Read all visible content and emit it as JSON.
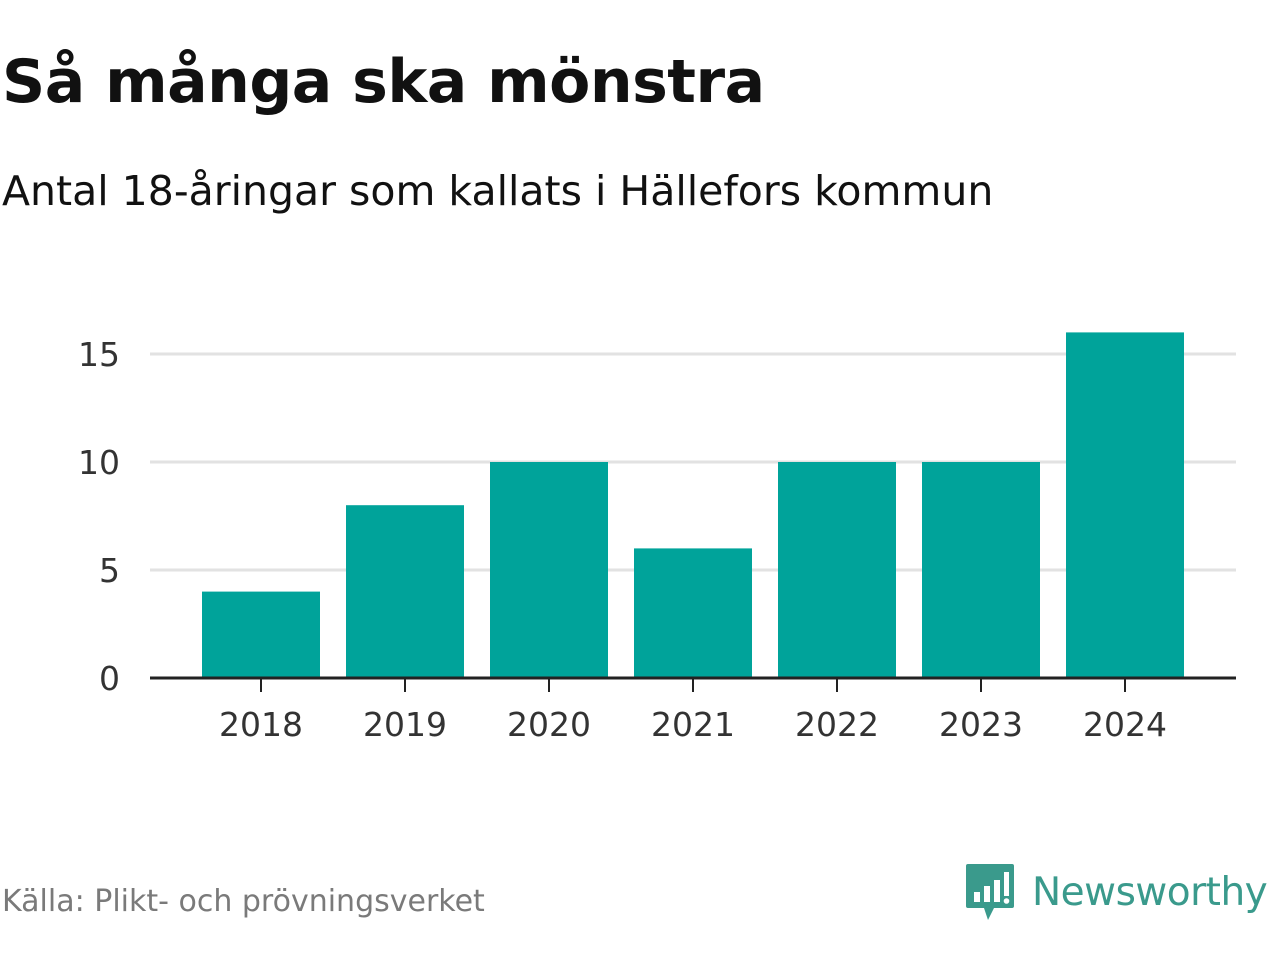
{
  "title": "Så många ska mönstra",
  "subtitle": "Antal 18-åringar som kallats i Hällefors kommun",
  "source": "Källa: Plikt- och prövningsverket",
  "brand": {
    "name": "Newsworthy",
    "icon": "newsworthy-logo-icon",
    "color": "#3a9a8c"
  },
  "colors": {
    "bar": "#00a39a",
    "grid": "#e2e2e2",
    "axis": "#222222"
  },
  "chart_data": {
    "type": "bar",
    "categories": [
      "2018",
      "2019",
      "2020",
      "2021",
      "2022",
      "2023",
      "2024"
    ],
    "values": [
      4,
      8,
      10,
      6,
      10,
      10,
      16
    ],
    "title": "Så många ska mönstra",
    "subtitle": "Antal 18-åringar som kallats i Hällefors kommun",
    "xlabel": "",
    "ylabel": "",
    "ylim": [
      0,
      16
    ],
    "yticks": [
      0,
      5,
      10,
      15
    ],
    "grid": true,
    "legend": "none"
  }
}
